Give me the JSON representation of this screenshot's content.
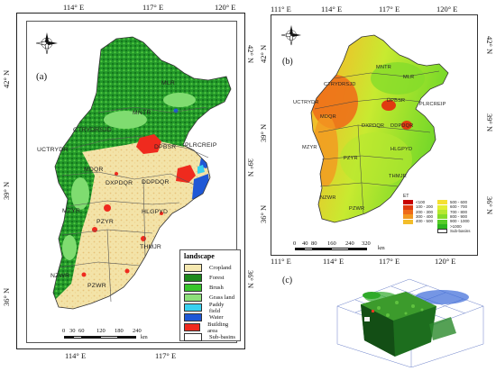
{
  "panel_a": {
    "letter": "(a)",
    "top_ticks": [
      "114° E",
      "117° E",
      "120° E"
    ],
    "bottom_ticks": [
      "114° E",
      "117° E"
    ],
    "left_ticks": [
      "42° N",
      "39° N",
      "36° N"
    ],
    "right_ticks": [
      "42° N",
      "39° N",
      "36° N"
    ],
    "basins": [
      "MLR",
      "MNTR",
      "CTRYDRSJD",
      "DPBSR",
      "PLRCREIP",
      "UCTRYDR",
      "MDQR",
      "DXPDQR",
      "DDPDQR",
      "MZYR",
      "PZYR",
      "HLGPYD",
      "THMJR",
      "NZWR",
      "PZWR"
    ],
    "scale_ticks": [
      "0",
      "30",
      "60",
      "120",
      "180",
      "240"
    ],
    "scale_unit": "km",
    "legend_title": "landscape",
    "legend_items": [
      {
        "label": "Cropland",
        "color": "#f5e8b0"
      },
      {
        "label": "Forest",
        "color": "#1e8a1e"
      },
      {
        "label": "Brush",
        "color": "#39c62d"
      },
      {
        "label": "Grass land",
        "color": "#8de07a"
      },
      {
        "label": "Paddy field",
        "color": "#38d1f0"
      },
      {
        "label": "Water",
        "color": "#1f58d6"
      },
      {
        "label": "Building area",
        "color": "#ef2a1e"
      },
      {
        "label": "Sub-basins",
        "color": "#ffffff"
      }
    ]
  },
  "panel_b": {
    "letter": "(b)",
    "top_ticks": [
      "111° E",
      "114° E",
      "117° E",
      "120° E"
    ],
    "bottom_ticks": [
      "111° E",
      "114° E",
      "117° E",
      "120° E"
    ],
    "left_ticks": [
      "42° N",
      "39° N",
      "36° N"
    ],
    "right_ticks": [
      "42° N",
      "39° N",
      "36° N"
    ],
    "basins": [
      "MLR",
      "MNTR",
      "CTRYDRSJD",
      "UCTRYDR",
      "DPBSR",
      "PLRCREIP",
      "MDQR",
      "DXPDQR",
      "DDPDQR",
      "MZYR",
      "PZYR",
      "HLGPYD",
      "THMJR",
      "NZWR",
      "PZWR"
    ],
    "scale_ticks": [
      "0",
      "40",
      "80",
      "160",
      "240",
      "320"
    ],
    "scale_unit": "km",
    "et_legend_title": "ET",
    "et_legend": [
      {
        "label": "<100",
        "color": "#c80000"
      },
      {
        "label": "100 - 200",
        "color": "#e03a10"
      },
      {
        "label": "200 - 300",
        "color": "#ee6a18"
      },
      {
        "label": "300 - 400",
        "color": "#f29820"
      },
      {
        "label": "400 - 500",
        "color": "#f3bd2a"
      },
      {
        "label": "500 - 600",
        "color": "#f5e02f"
      },
      {
        "label": "600 - 700",
        "color": "#e2ef30"
      },
      {
        "label": "700 - 800",
        "color": "#b6e830"
      },
      {
        "label": "800 - 900",
        "color": "#85dc2a"
      },
      {
        "label": "900 - 1000",
        "color": "#57cc28"
      },
      {
        "label": ">1000",
        "color": "#2fb620"
      },
      {
        "label": "Sub-basins",
        "color": "#ffffff"
      }
    ]
  },
  "panel_c": {
    "letter": "(c)"
  }
}
